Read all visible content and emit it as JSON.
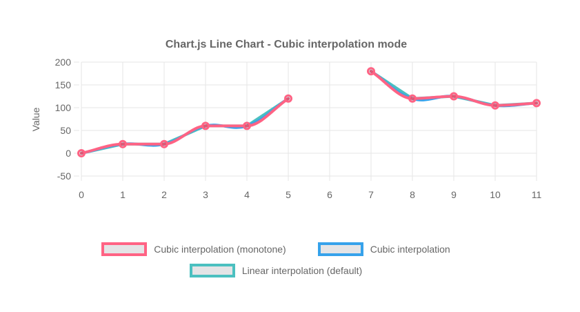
{
  "chart_data": {
    "type": "line",
    "title": "Chart.js Line Chart - Cubic interpolation mode",
    "xlabel": "",
    "ylabel": "Value",
    "x": [
      0,
      1,
      2,
      3,
      4,
      5,
      6,
      7,
      8,
      9,
      10,
      11
    ],
    "x_ticks": [
      "0",
      "1",
      "2",
      "3",
      "4",
      "5",
      "6",
      "7",
      "8",
      "9",
      "10",
      "11"
    ],
    "y_ticks": [
      200,
      150,
      100,
      50,
      0,
      -50
    ],
    "ylim": [
      -50,
      200
    ],
    "grid": true,
    "legend_position": "bottom",
    "series": [
      {
        "name": "Cubic interpolation (monotone)",
        "color": "#ff6384",
        "interpolation": "monotone",
        "values": [
          0,
          20,
          20,
          60,
          60,
          120,
          null,
          180,
          120,
          125,
          105,
          110
        ]
      },
      {
        "name": "Cubic interpolation",
        "color": "#36a2eb",
        "interpolation": "cubic",
        "values": [
          0,
          20,
          20,
          60,
          60,
          120,
          null,
          180,
          120,
          125,
          105,
          110
        ]
      },
      {
        "name": "Linear interpolation (default)",
        "color": "#4bc0c0",
        "interpolation": "linear",
        "values": [
          0,
          20,
          20,
          60,
          60,
          120,
          null,
          180,
          120,
          125,
          105,
          110
        ]
      }
    ],
    "colors": {
      "grid": "#e6e6e6",
      "tick_text": "#666666",
      "title_text": "#666666",
      "point_fill": "rgba(0,0,0,0.12)",
      "legend_swatch_fill": "#e4e4e6"
    }
  }
}
